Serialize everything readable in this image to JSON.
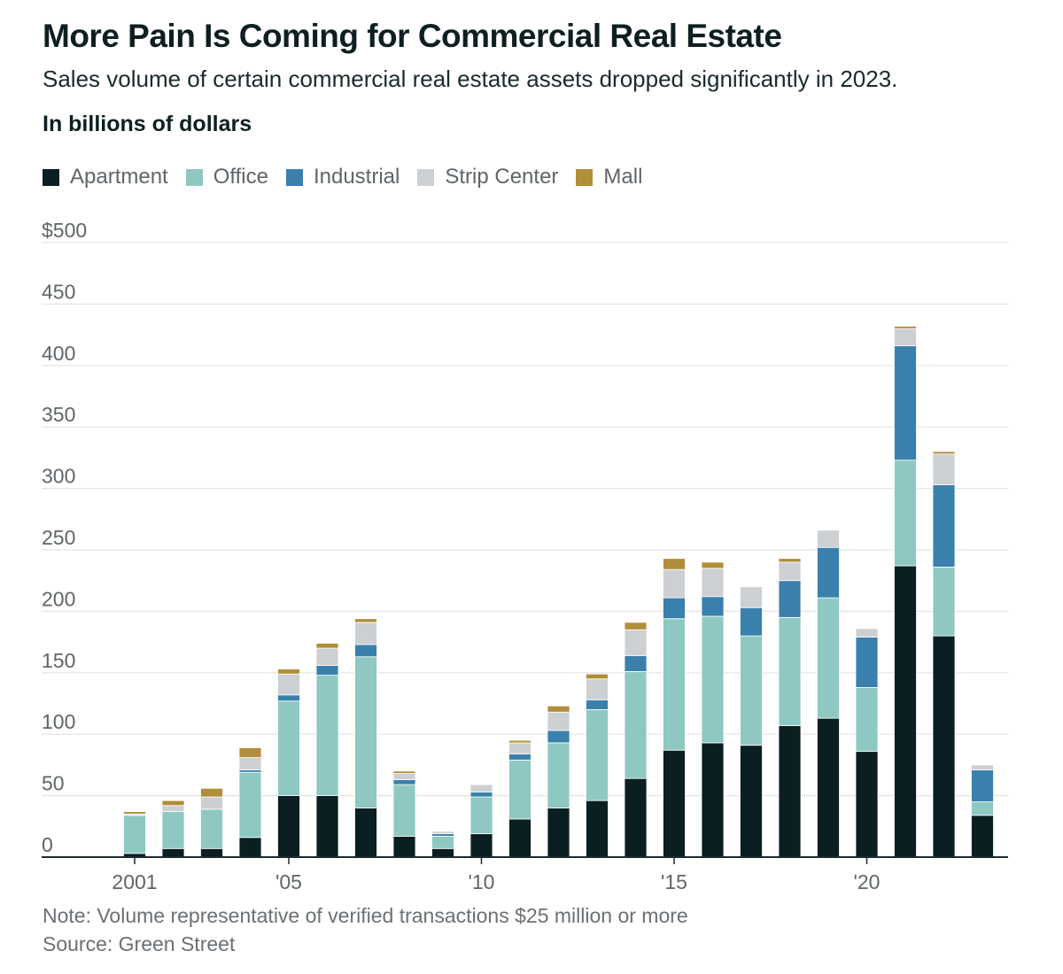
{
  "header": {
    "title": "More Pain Is Coming for Commercial Real Estate",
    "subtitle": "Sales volume of certain commercial real estate assets dropped significantly in 2023.",
    "unit_label": "In billions of dollars"
  },
  "legend": [
    {
      "label": "Apartment",
      "color": "#0b1e22"
    },
    {
      "label": "Office",
      "color": "#8fc8c3"
    },
    {
      "label": "Industrial",
      "color": "#3a80ad"
    },
    {
      "label": "Strip Center",
      "color": "#cdd0d3"
    },
    {
      "label": "Mall",
      "color": "#b08e3a"
    }
  ],
  "footer": {
    "note": "Note: Volume representative of verified transactions $25 million or more",
    "source": "Source: Green Street"
  },
  "chart_data": {
    "type": "bar",
    "stacked": true,
    "title": "More Pain Is Coming for Commercial Real Estate",
    "ylabel": "In billions of dollars",
    "xlabel": "",
    "ylim": [
      0,
      500
    ],
    "y_ticks": [
      0,
      50,
      100,
      150,
      200,
      250,
      300,
      350,
      400,
      450,
      500
    ],
    "y_tick_labels": [
      "0",
      "50",
      "100",
      "150",
      "200",
      "250",
      "300",
      "350",
      "400",
      "450",
      "$500"
    ],
    "categories": [
      "2001",
      "2002",
      "2003",
      "2004",
      "2005",
      "2006",
      "2007",
      "2008",
      "2009",
      "2010",
      "2011",
      "2012",
      "2013",
      "2014",
      "2015",
      "2016",
      "2017",
      "2018",
      "2019",
      "2020",
      "2021",
      "2022",
      "2023"
    ],
    "x_tick_labels": [
      {
        "category": "2001",
        "label": "2001"
      },
      {
        "category": "2005",
        "label": "'05"
      },
      {
        "category": "2010",
        "label": "'10"
      },
      {
        "category": "2015",
        "label": "'15"
      },
      {
        "category": "2020",
        "label": "'20"
      }
    ],
    "series": [
      {
        "name": "Apartment",
        "color": "#0b1e22",
        "values": [
          3,
          7,
          7,
          16,
          50,
          50,
          40,
          17,
          7,
          19,
          31,
          40,
          46,
          64,
          87,
          93,
          91,
          107,
          113,
          86,
          237,
          180,
          34
        ]
      },
      {
        "name": "Office",
        "color": "#8fc8c3",
        "values": [
          31,
          30,
          32,
          53,
          77,
          98,
          123,
          42,
          10,
          30,
          48,
          53,
          74,
          87,
          107,
          103,
          89,
          88,
          98,
          52,
          86,
          56,
          11
        ]
      },
      {
        "name": "Industrial",
        "color": "#3a80ad",
        "values": [
          0,
          0,
          0,
          2,
          5,
          8,
          10,
          4,
          2,
          4,
          5,
          10,
          8,
          13,
          17,
          16,
          23,
          30,
          41,
          41,
          93,
          67,
          26
        ]
      },
      {
        "name": "Strip Center",
        "color": "#cdd0d3",
        "values": [
          1,
          5,
          10,
          10,
          17,
          14,
          18,
          5,
          2,
          6,
          9,
          15,
          17,
          21,
          23,
          23,
          17,
          15,
          14,
          7,
          14,
          25,
          4
        ]
      },
      {
        "name": "Mall",
        "color": "#b08e3a",
        "values": [
          2,
          4,
          7,
          8,
          4,
          4,
          3,
          2,
          0,
          0,
          2,
          5,
          4,
          6,
          9,
          5,
          0,
          3,
          0,
          0,
          2,
          2,
          0
        ]
      }
    ]
  }
}
